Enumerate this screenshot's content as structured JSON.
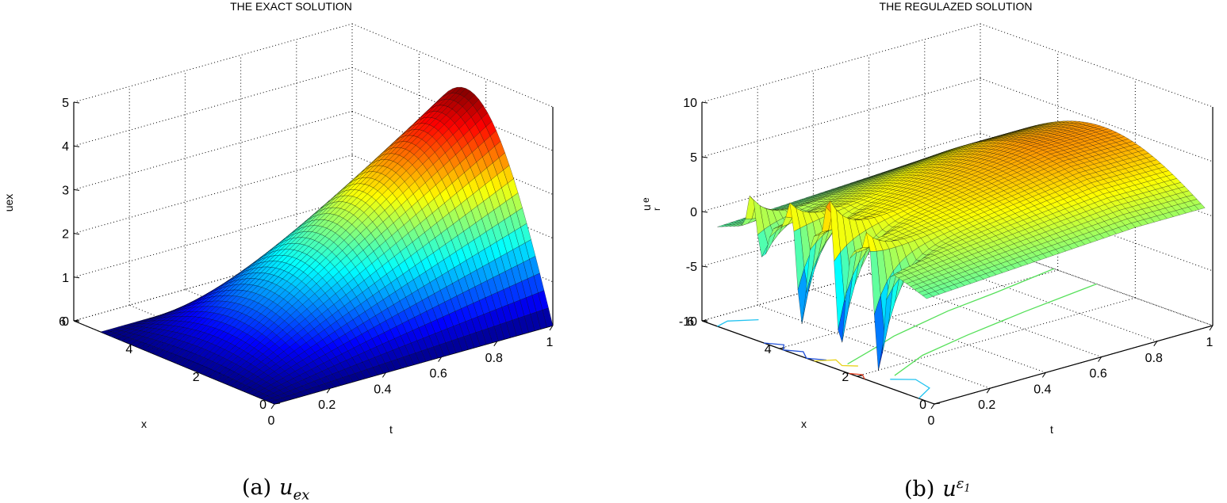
{
  "chart_data": [
    {
      "type": "surface",
      "title": "THE EXACT SOLUTION",
      "xlabel": "t",
      "ylabel": "x",
      "zlabel": "uex",
      "xlim": [
        0,
        1
      ],
      "ylim": [
        0,
        6
      ],
      "zlim": [
        0,
        5
      ],
      "x_ticks": [
        "0",
        "0.2",
        "0.4",
        "0.6",
        "0.8",
        "1"
      ],
      "y_ticks": [
        "0",
        "2",
        "4",
        "6"
      ],
      "z_ticks": [
        "0",
        "1",
        "2",
        "3",
        "4",
        "5"
      ],
      "surface": {
        "description_formula": "z = 4.6 * t * sin(pi * x / 5.2)",
        "t_range": [
          0,
          1
        ],
        "x_range": [
          0,
          5.2
        ],
        "peak_value": 4.6
      },
      "colormap": "jet",
      "contour_on_base": true,
      "grid": true,
      "caption": {
        "label": "(a)",
        "symbol_base": "u",
        "symbol_sub": "ex"
      }
    },
    {
      "type": "surface",
      "title": "THE REGULAZED SOLUTION",
      "xlabel": "t",
      "ylabel": "x",
      "zlabel_main": "u",
      "zlabel_sub": "r",
      "zlabel_sup": "e",
      "xlim": [
        0,
        1
      ],
      "ylim": [
        0,
        6
      ],
      "zlim": [
        -10,
        10
      ],
      "x_ticks": [
        "0",
        "0.2",
        "0.4",
        "0.6",
        "0.8",
        "1"
      ],
      "y_ticks": [
        "0",
        "2",
        "4",
        "6"
      ],
      "z_ticks": [
        "-10",
        "-5",
        "0",
        "5",
        "10"
      ],
      "surface": {
        "smooth_plateau": 4.6,
        "spikes": [
          {
            "t": 0.0,
            "x": 4.6,
            "max": 3.3,
            "min": -3.0
          },
          {
            "t": 0.0,
            "x": 3.6,
            "max": 2.6,
            "min": -8.5
          },
          {
            "t": 0.0,
            "x": 2.6,
            "max": 4.3,
            "min": -9.5
          },
          {
            "t": 0.0,
            "x": 1.6,
            "max": 2.6,
            "min": -10.0
          }
        ]
      },
      "colormap": "jet",
      "contour_on_base": true,
      "grid": true,
      "caption": {
        "label": "(b)",
        "symbol_base": "u",
        "symbol_sup": "ε",
        "symbol_sup_sub": "1"
      }
    }
  ]
}
